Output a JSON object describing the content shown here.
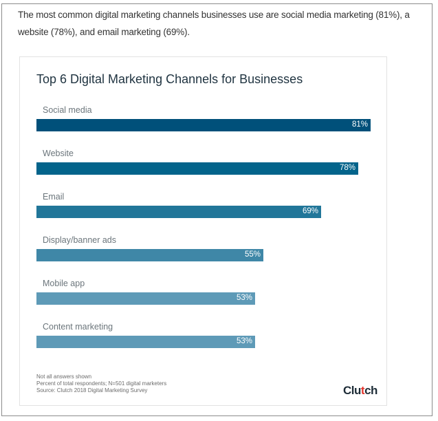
{
  "intro_text": "The most common digital marketing channels businesses use are social media marketing (81%), a website (78%), and email marketing (69%).",
  "chart_data": {
    "type": "bar",
    "orientation": "horizontal",
    "title": "Top 6 Digital Marketing Channels for Businesses",
    "categories": [
      "Social media",
      "Website",
      "Email",
      "Display/banner ads",
      "Mobile app",
      "Content marketing"
    ],
    "values": [
      81,
      78,
      69,
      55,
      53,
      53
    ],
    "value_labels": [
      "81%",
      "78%",
      "69%",
      "55%",
      "53%",
      "53%"
    ],
    "colors": [
      "#00507a",
      "#03648b",
      "#217699",
      "#3f87a7",
      "#5e9ab7",
      "#5e9ab7"
    ],
    "xlim": [
      0,
      100
    ],
    "grid": false,
    "notes": [
      "Not all answers shown",
      "Percent of total respondents; N=501 digital marketers",
      "Source: Clutch 2018 Digital Marketing Survey"
    ]
  },
  "logo": {
    "text": "Clutch"
  }
}
